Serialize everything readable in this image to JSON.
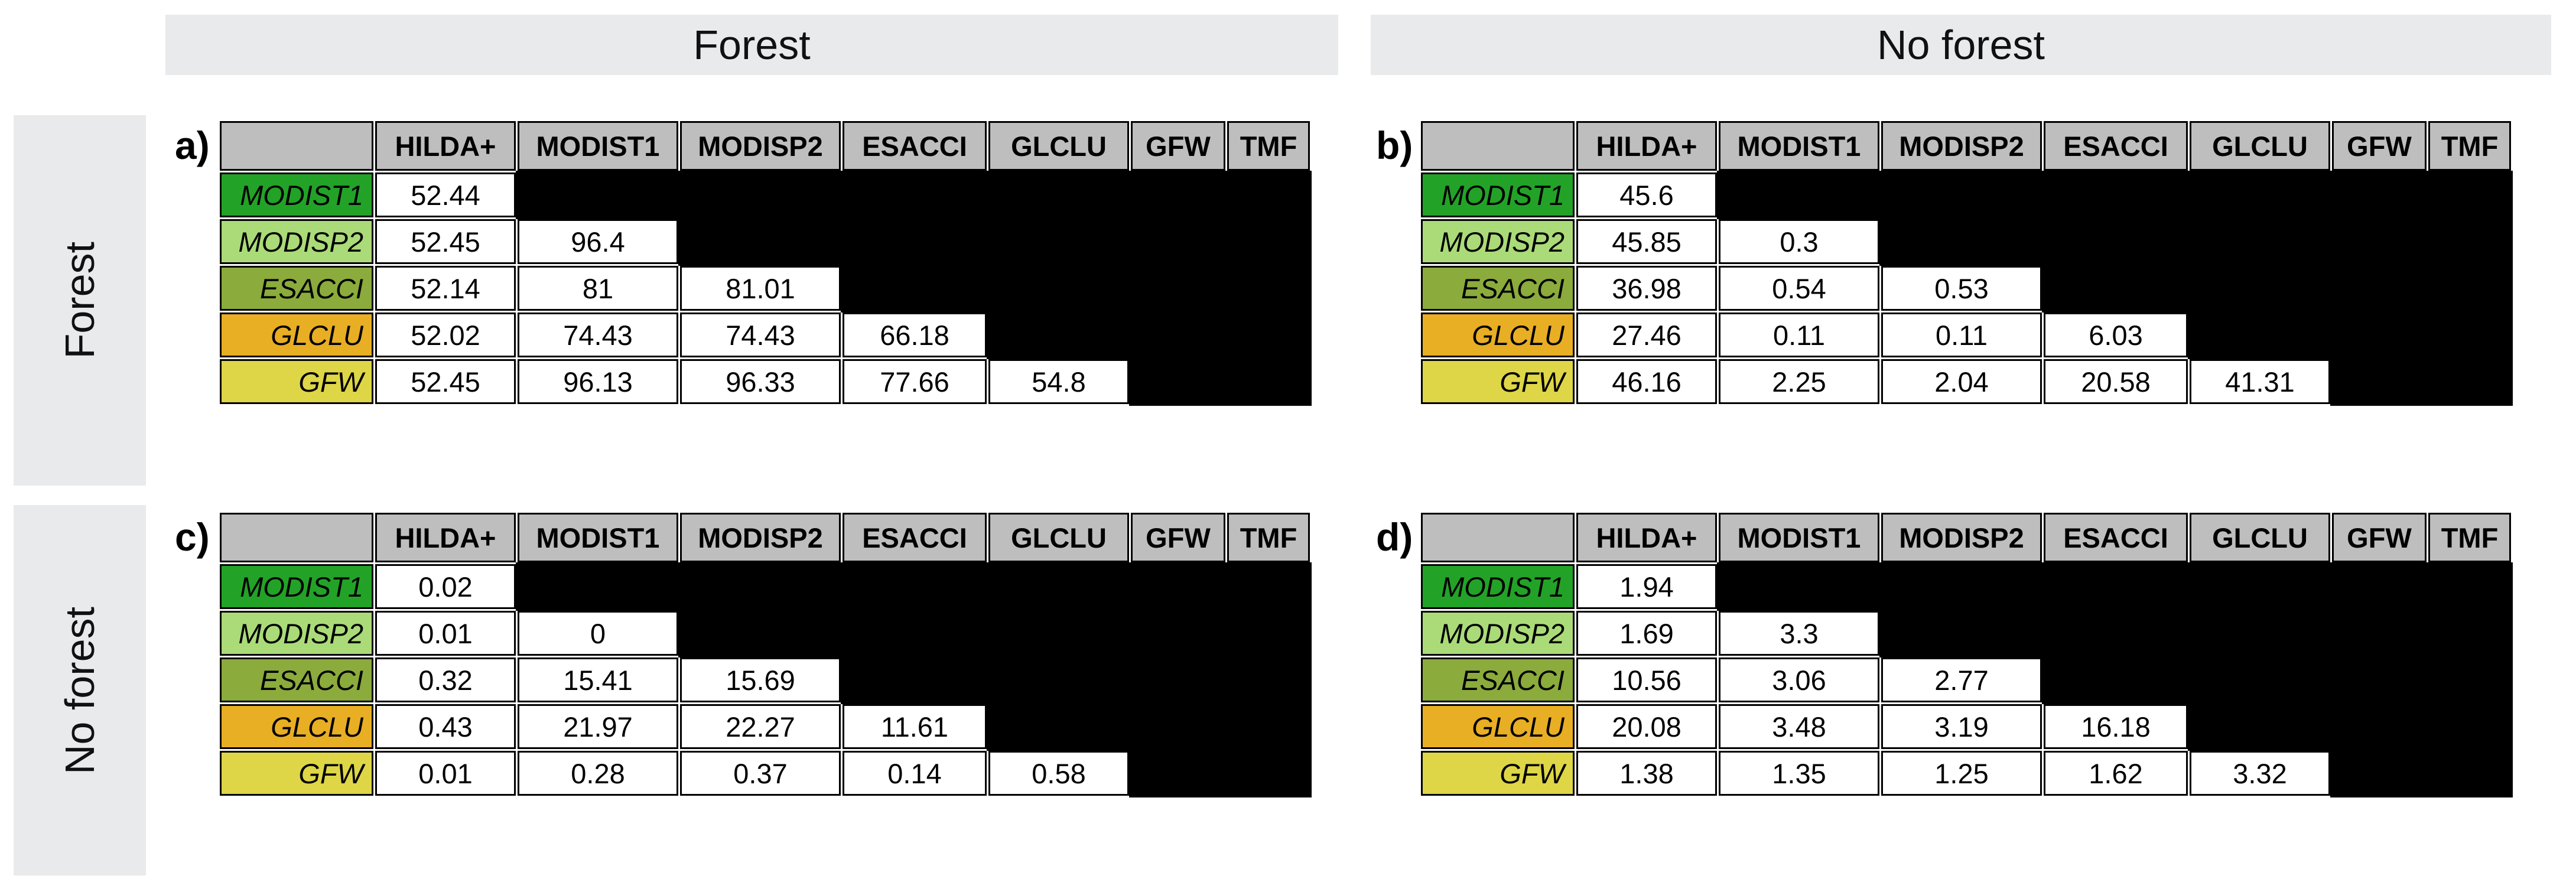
{
  "outer_labels": {
    "top_left": "Forest",
    "top_right": "No forest",
    "side_top": "Forest",
    "side_bottom": "No forest"
  },
  "row_header_colors": {
    "MODIST1": "#23A228",
    "MODISP2": "#AADB78",
    "ESACCI": "#8BAB3C",
    "GLCLU": "#E8AE24",
    "GFW": "#DED646"
  },
  "colors": {
    "header_bg": "#BEBEBE",
    "band_bg": "#E8EAEC",
    "masked_cell": "#000000",
    "cell_border": "#000000",
    "value_bg": "#FFFFFF"
  },
  "chart_data": [
    {
      "type": "table",
      "panel_label": "a)",
      "row_region": "Forest",
      "col_region": "Forest",
      "col_headers": [
        "HILDA+",
        "MODIST1",
        "MODISP2",
        "ESACCI",
        "GLCLU",
        "GFW",
        "TMF"
      ],
      "row_headers": [
        "MODIST1",
        "MODISP2",
        "ESACCI",
        "GLCLU",
        "GFW"
      ],
      "values": [
        [
          52.44
        ],
        [
          52.45,
          96.4
        ],
        [
          52.14,
          81,
          81.01
        ],
        [
          52.02,
          74.43,
          74.43,
          66.18
        ],
        [
          52.45,
          96.13,
          96.33,
          77.66,
          54.8
        ]
      ]
    },
    {
      "type": "table",
      "panel_label": "b)",
      "row_region": "Forest",
      "col_region": "No forest",
      "col_headers": [
        "HILDA+",
        "MODIST1",
        "MODISP2",
        "ESACCI",
        "GLCLU",
        "GFW",
        "TMF"
      ],
      "row_headers": [
        "MODIST1",
        "MODISP2",
        "ESACCI",
        "GLCLU",
        "GFW"
      ],
      "values": [
        [
          45.6
        ],
        [
          45.85,
          0.3
        ],
        [
          36.98,
          0.54,
          0.53
        ],
        [
          27.46,
          0.11,
          0.11,
          6.03
        ],
        [
          46.16,
          2.25,
          2.04,
          20.58,
          41.31
        ]
      ]
    },
    {
      "type": "table",
      "panel_label": "c)",
      "row_region": "No forest",
      "col_region": "Forest",
      "col_headers": [
        "HILDA+",
        "MODIST1",
        "MODISP2",
        "ESACCI",
        "GLCLU",
        "GFW",
        "TMF"
      ],
      "row_headers": [
        "MODIST1",
        "MODISP2",
        "ESACCI",
        "GLCLU",
        "GFW"
      ],
      "values": [
        [
          0.02
        ],
        [
          0.01,
          0
        ],
        [
          0.32,
          15.41,
          15.69
        ],
        [
          0.43,
          21.97,
          22.27,
          11.61
        ],
        [
          0.01,
          0.28,
          0.37,
          0.14,
          0.58
        ]
      ]
    },
    {
      "type": "table",
      "panel_label": "d)",
      "row_region": "No forest",
      "col_region": "No forest",
      "col_headers": [
        "HILDA+",
        "MODIST1",
        "MODISP2",
        "ESACCI",
        "GLCLU",
        "GFW",
        "TMF"
      ],
      "row_headers": [
        "MODIST1",
        "MODISP2",
        "ESACCI",
        "GLCLU",
        "GFW"
      ],
      "values": [
        [
          1.94
        ],
        [
          1.69,
          3.3
        ],
        [
          10.56,
          3.06,
          2.77
        ],
        [
          20.08,
          3.48,
          3.19,
          16.18
        ],
        [
          1.38,
          1.35,
          1.25,
          1.62,
          3.32
        ]
      ]
    }
  ]
}
